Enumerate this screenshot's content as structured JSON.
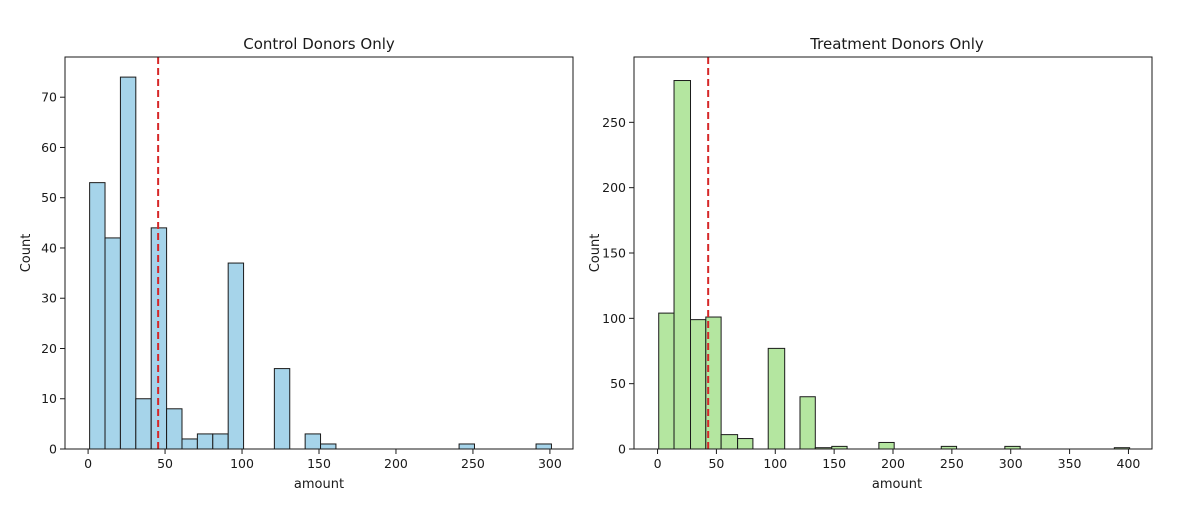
{
  "chart_data": [
    {
      "type": "bar",
      "title": "Control Donors Only",
      "xlabel": "amount",
      "ylabel": "Count",
      "xlim": [
        -15,
        315
      ],
      "ylim": [
        0,
        78
      ],
      "xticks": [
        0,
        50,
        100,
        150,
        200,
        250,
        300
      ],
      "yticks": [
        0,
        10,
        20,
        30,
        40,
        50,
        60,
        70
      ],
      "bar_color": "#a6d4ea",
      "mean_line": 45.5,
      "mean_line_color": "#d62728",
      "bins": [
        {
          "x0": 1,
          "x1": 11,
          "count": 53
        },
        {
          "x0": 11,
          "x1": 21,
          "count": 42
        },
        {
          "x0": 21,
          "x1": 31,
          "count": 74
        },
        {
          "x0": 31,
          "x1": 41,
          "count": 10
        },
        {
          "x0": 41,
          "x1": 51,
          "count": 44
        },
        {
          "x0": 51,
          "x1": 61,
          "count": 8
        },
        {
          "x0": 61,
          "x1": 71,
          "count": 2
        },
        {
          "x0": 71,
          "x1": 81,
          "count": 3
        },
        {
          "x0": 81,
          "x1": 91,
          "count": 3
        },
        {
          "x0": 91,
          "x1": 101,
          "count": 37
        },
        {
          "x0": 121,
          "x1": 131,
          "count": 16
        },
        {
          "x0": 141,
          "x1": 151,
          "count": 3
        },
        {
          "x0": 151,
          "x1": 161,
          "count": 1
        },
        {
          "x0": 241,
          "x1": 251,
          "count": 1
        },
        {
          "x0": 291,
          "x1": 301,
          "count": 1
        }
      ]
    },
    {
      "type": "bar",
      "title": "Treatment Donors Only",
      "xlabel": "amount",
      "ylabel": "Count",
      "xlim": [
        -20,
        420
      ],
      "ylim": [
        0,
        300
      ],
      "xticks": [
        0,
        50,
        100,
        150,
        200,
        250,
        300,
        350,
        400
      ],
      "yticks": [
        0,
        50,
        100,
        150,
        200,
        250
      ],
      "bar_color": "#b4e6a0",
      "mean_line": 43,
      "mean_line_color": "#d62728",
      "bins": [
        {
          "x0": 1,
          "x1": 14,
          "count": 104
        },
        {
          "x0": 14,
          "x1": 28,
          "count": 282
        },
        {
          "x0": 28,
          "x1": 41,
          "count": 99
        },
        {
          "x0": 41,
          "x1": 54,
          "count": 101
        },
        {
          "x0": 54,
          "x1": 68,
          "count": 11
        },
        {
          "x0": 68,
          "x1": 81,
          "count": 8
        },
        {
          "x0": 94,
          "x1": 108,
          "count": 77
        },
        {
          "x0": 121,
          "x1": 134,
          "count": 40
        },
        {
          "x0": 134,
          "x1": 148,
          "count": 1
        },
        {
          "x0": 148,
          "x1": 161,
          "count": 2
        },
        {
          "x0": 188,
          "x1": 201,
          "count": 5
        },
        {
          "x0": 241,
          "x1": 254,
          "count": 2
        },
        {
          "x0": 295,
          "x1": 308,
          "count": 2
        },
        {
          "x0": 388,
          "x1": 401,
          "count": 1
        }
      ]
    }
  ]
}
